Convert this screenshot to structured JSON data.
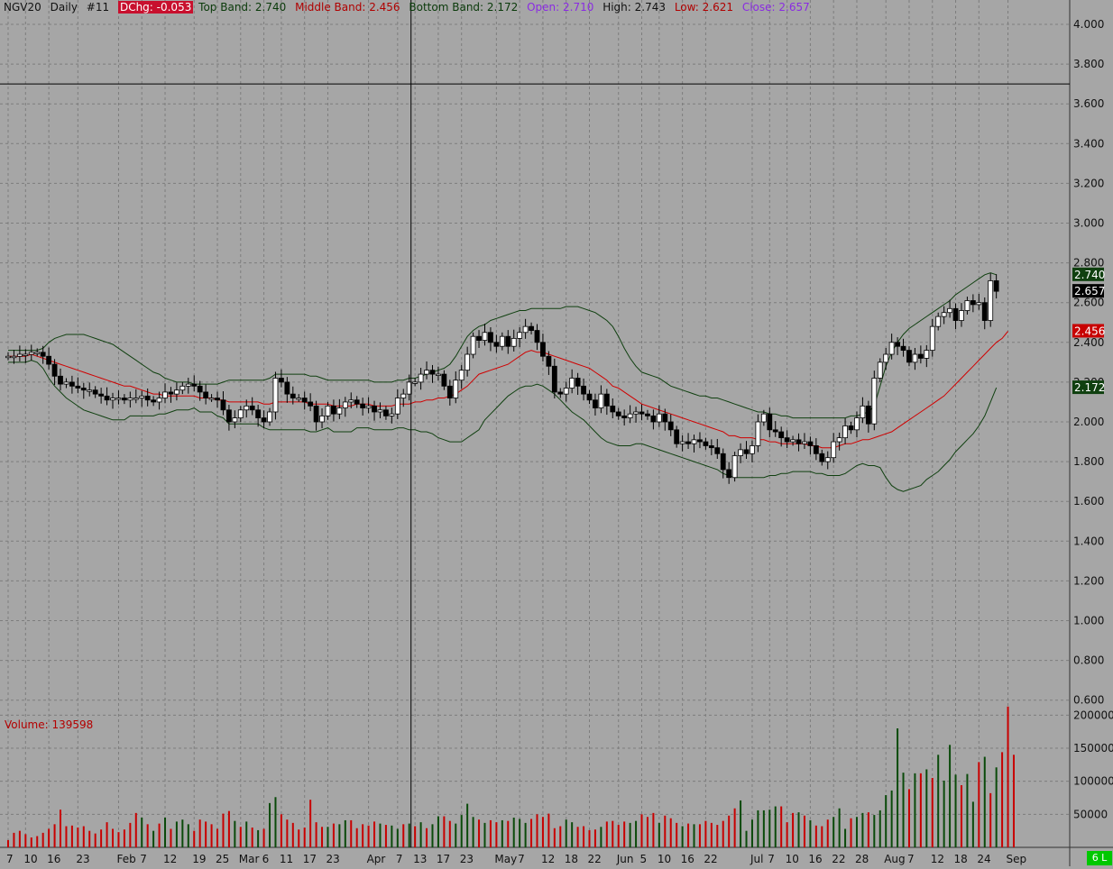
{
  "legend": {
    "symbol": "NGV20",
    "period": "Daily",
    "id": "#11",
    "dchg": "DChg: -0.053",
    "top_band": "Top Band: 2.740",
    "middle_band": "Middle Band: 2.456",
    "bottom_band": "Bottom Band: 2.172",
    "open": "Open: 2.710",
    "high": "High: 2.743",
    "low": "Low: 2.621",
    "close": "Close: 2.657"
  },
  "volume_label": "Volume: 139598",
  "corner_badge": "6 L",
  "colors": {
    "background": "#a6a6a6",
    "grid": "#7d7d7d",
    "band": "#104010",
    "middle": "#d00000",
    "up_candle": "#ffffff",
    "down_candle": "#000000",
    "volume_up": "#0a4a0a",
    "volume_down": "#c80000",
    "dchg_bg": "#c8102e"
  },
  "chart_data": {
    "type": "candlestick",
    "ylim": [
      0.5,
      4.1
    ],
    "volume_ylim": [
      0,
      225000
    ],
    "y_ticks": [
      "4.000",
      "3.800",
      "3.600",
      "3.400",
      "3.200",
      "3.000",
      "2.800",
      "2.600",
      "2.400",
      "2.200",
      "2.000",
      "1.800",
      "1.600",
      "1.400",
      "1.200",
      "1.000",
      "0.800",
      "0.600"
    ],
    "volume_ticks": [
      "200000",
      "150000",
      "100000",
      "50000"
    ],
    "x_ticks": [
      {
        "label": "7",
        "i": 0
      },
      {
        "label": "10",
        "i": 3
      },
      {
        "label": "16",
        "i": 7
      },
      {
        "label": "23",
        "i": 12
      },
      {
        "label": "Feb",
        "i": 19
      },
      {
        "label": "7",
        "i": 23
      },
      {
        "label": "12",
        "i": 27
      },
      {
        "label": "19",
        "i": 32
      },
      {
        "label": "25",
        "i": 36
      },
      {
        "label": "Mar",
        "i": 40
      },
      {
        "label": "6",
        "i": 44
      },
      {
        "label": "11",
        "i": 47
      },
      {
        "label": "17",
        "i": 51
      },
      {
        "label": "23",
        "i": 55
      },
      {
        "label": "Apr",
        "i": 62
      },
      {
        "label": "7",
        "i": 67
      },
      {
        "label": "13",
        "i": 70
      },
      {
        "label": "17",
        "i": 74
      },
      {
        "label": "23",
        "i": 78
      },
      {
        "label": "May",
        "i": 84
      },
      {
        "label": "7",
        "i": 88
      },
      {
        "label": "12",
        "i": 92
      },
      {
        "label": "18",
        "i": 96
      },
      {
        "label": "22",
        "i": 100
      },
      {
        "label": "Jun",
        "i": 105
      },
      {
        "label": "5",
        "i": 109
      },
      {
        "label": "10",
        "i": 112
      },
      {
        "label": "16",
        "i": 116
      },
      {
        "label": "22",
        "i": 120
      },
      {
        "label": "Jul",
        "i": 128
      },
      {
        "label": "7",
        "i": 131
      },
      {
        "label": "10",
        "i": 134
      },
      {
        "label": "16",
        "i": 138
      },
      {
        "label": "22",
        "i": 142
      },
      {
        "label": "28",
        "i": 146
      },
      {
        "label": "Aug",
        "i": 151
      },
      {
        "label": "7",
        "i": 155
      },
      {
        "label": "12",
        "i": 159
      },
      {
        "label": "18",
        "i": 163
      },
      {
        "label": "24",
        "i": 167
      },
      {
        "label": "Sep",
        "i": 172
      }
    ],
    "cursor_index": 69,
    "cursor_price": 3.7,
    "last_labels": [
      {
        "text": "2.740",
        "value": 2.74,
        "bg": "#104010",
        "fg": "#ffffff"
      },
      {
        "text": "2.657",
        "value": 2.657,
        "bg": "#000000",
        "fg": "#ffffff"
      },
      {
        "text": "2.456",
        "value": 2.456,
        "bg": "#c80000",
        "fg": "#ffffff"
      },
      {
        "text": "2.172",
        "value": 2.172,
        "bg": "#104010",
        "fg": "#ffffff"
      }
    ],
    "closes": [
      2.33,
      2.33,
      2.34,
      2.34,
      2.35,
      2.35,
      2.33,
      2.29,
      2.23,
      2.19,
      2.2,
      2.18,
      2.17,
      2.16,
      2.16,
      2.14,
      2.13,
      2.11,
      2.12,
      2.12,
      2.11,
      2.12,
      2.12,
      2.13,
      2.11,
      2.1,
      2.12,
      2.15,
      2.14,
      2.16,
      2.18,
      2.19,
      2.18,
      2.15,
      2.12,
      2.12,
      2.11,
      2.06,
      2.0,
      2.02,
      2.06,
      2.08,
      2.06,
      2.02,
      2.0,
      2.05,
      2.22,
      2.2,
      2.14,
      2.12,
      2.12,
      2.1,
      2.08,
      2.0,
      2.03,
      2.08,
      2.04,
      2.07,
      2.1,
      2.11,
      2.09,
      2.07,
      2.08,
      2.05,
      2.06,
      2.03,
      2.04,
      2.12,
      2.14,
      2.2,
      2.2,
      2.24,
      2.26,
      2.24,
      2.24,
      2.18,
      2.12,
      2.21,
      2.26,
      2.34,
      2.43,
      2.41,
      2.45,
      2.4,
      2.38,
      2.43,
      2.38,
      2.42,
      2.45,
      2.48,
      2.46,
      2.4,
      2.33,
      2.28,
      2.15,
      2.14,
      2.17,
      2.22,
      2.18,
      2.14,
      2.11,
      2.07,
      2.14,
      2.08,
      2.05,
      2.03,
      2.02,
      2.04,
      2.05,
      2.04,
      2.03,
      2.0,
      2.04,
      2.0,
      1.96,
      1.89,
      1.9,
      1.89,
      1.91,
      1.9,
      1.88,
      1.87,
      1.84,
      1.76,
      1.72,
      1.83,
      1.86,
      1.84,
      1.88,
      2.0,
      2.04,
      1.96,
      1.95,
      1.92,
      1.9,
      1.91,
      1.89,
      1.9,
      1.88,
      1.84,
      1.8,
      1.82,
      1.9,
      1.92,
      1.98,
      1.96,
      2.02,
      2.08,
      1.99,
      2.22,
      2.3,
      2.34,
      2.4,
      2.38,
      2.36,
      2.3,
      2.34,
      2.32,
      2.36,
      2.48,
      2.53,
      2.55,
      2.57,
      2.51,
      2.56,
      2.61,
      2.59,
      2.6,
      2.51,
      2.71,
      2.657
    ],
    "mids": [
      2.33,
      2.33,
      2.33,
      2.33,
      2.34,
      2.33,
      2.32,
      2.31,
      2.3,
      2.29,
      2.28,
      2.27,
      2.26,
      2.25,
      2.24,
      2.23,
      2.22,
      2.21,
      2.2,
      2.19,
      2.18,
      2.18,
      2.17,
      2.16,
      2.15,
      2.14,
      2.14,
      2.13,
      2.13,
      2.13,
      2.13,
      2.13,
      2.13,
      2.12,
      2.12,
      2.12,
      2.11,
      2.11,
      2.1,
      2.1,
      2.1,
      2.1,
      2.1,
      2.1,
      2.09,
      2.09,
      2.1,
      2.1,
      2.1,
      2.1,
      2.1,
      2.1,
      2.09,
      2.09,
      2.09,
      2.09,
      2.08,
      2.08,
      2.08,
      2.08,
      2.09,
      2.09,
      2.09,
      2.08,
      2.08,
      2.08,
      2.08,
      2.09,
      2.09,
      2.09,
      2.1,
      2.1,
      2.11,
      2.11,
      2.12,
      2.12,
      2.13,
      2.14,
      2.16,
      2.18,
      2.21,
      2.24,
      2.25,
      2.26,
      2.27,
      2.28,
      2.29,
      2.31,
      2.33,
      2.35,
      2.36,
      2.35,
      2.35,
      2.34,
      2.33,
      2.32,
      2.31,
      2.3,
      2.29,
      2.28,
      2.27,
      2.25,
      2.23,
      2.21,
      2.18,
      2.17,
      2.15,
      2.13,
      2.11,
      2.09,
      2.08,
      2.07,
      2.06,
      2.05,
      2.04,
      2.03,
      2.02,
      2.01,
      2.0,
      1.99,
      1.98,
      1.97,
      1.96,
      1.95,
      1.93,
      1.93,
      1.92,
      1.92,
      1.92,
      1.91,
      1.91,
      1.9,
      1.9,
      1.89,
      1.89,
      1.89,
      1.89,
      1.89,
      1.88,
      1.88,
      1.87,
      1.87,
      1.87,
      1.88,
      1.89,
      1.89,
      1.9,
      1.91,
      1.91,
      1.92,
      1.93,
      1.94,
      1.95,
      1.97,
      1.99,
      2.01,
      2.03,
      2.05,
      2.07,
      2.09,
      2.11,
      2.13,
      2.16,
      2.19,
      2.22,
      2.25,
      2.28,
      2.31,
      2.34,
      2.37,
      2.4,
      2.42,
      2.456
    ],
    "uppers": [
      2.36,
      2.36,
      2.36,
      2.36,
      2.36,
      2.36,
      2.37,
      2.4,
      2.42,
      2.43,
      2.44,
      2.44,
      2.44,
      2.44,
      2.43,
      2.42,
      2.41,
      2.4,
      2.39,
      2.37,
      2.35,
      2.33,
      2.31,
      2.29,
      2.27,
      2.25,
      2.24,
      2.22,
      2.21,
      2.2,
      2.2,
      2.2,
      2.19,
      2.19,
      2.19,
      2.19,
      2.19,
      2.2,
      2.21,
      2.21,
      2.21,
      2.21,
      2.21,
      2.21,
      2.21,
      2.22,
      2.24,
      2.24,
      2.24,
      2.24,
      2.24,
      2.24,
      2.23,
      2.23,
      2.22,
      2.21,
      2.21,
      2.21,
      2.21,
      2.21,
      2.21,
      2.21,
      2.21,
      2.2,
      2.2,
      2.2,
      2.2,
      2.21,
      2.21,
      2.22,
      2.22,
      2.23,
      2.24,
      2.25,
      2.26,
      2.27,
      2.29,
      2.33,
      2.38,
      2.43,
      2.46,
      2.48,
      2.49,
      2.51,
      2.52,
      2.53,
      2.54,
      2.55,
      2.56,
      2.56,
      2.57,
      2.57,
      2.57,
      2.57,
      2.57,
      2.57,
      2.58,
      2.58,
      2.58,
      2.57,
      2.56,
      2.55,
      2.53,
      2.51,
      2.48,
      2.43,
      2.37,
      2.32,
      2.28,
      2.25,
      2.24,
      2.23,
      2.22,
      2.2,
      2.18,
      2.17,
      2.16,
      2.15,
      2.14,
      2.13,
      2.13,
      2.12,
      2.12,
      2.11,
      2.1,
      2.09,
      2.08,
      2.07,
      2.06,
      2.05,
      2.05,
      2.04,
      2.04,
      2.03,
      2.03,
      2.02,
      2.02,
      2.02,
      2.02,
      2.02,
      2.02,
      2.02,
      2.02,
      2.02,
      2.02,
      2.03,
      2.03,
      2.04,
      2.05,
      2.08,
      2.18,
      2.28,
      2.35,
      2.4,
      2.44,
      2.47,
      2.49,
      2.51,
      2.53,
      2.55,
      2.57,
      2.59,
      2.61,
      2.64,
      2.66,
      2.68,
      2.7,
      2.72,
      2.74,
      2.75,
      2.74
    ],
    "lowers": [
      2.3,
      2.3,
      2.3,
      2.3,
      2.31,
      2.3,
      2.27,
      2.22,
      2.18,
      2.15,
      2.12,
      2.1,
      2.08,
      2.06,
      2.05,
      2.04,
      2.03,
      2.02,
      2.01,
      2.01,
      2.01,
      2.03,
      2.03,
      2.03,
      2.03,
      2.03,
      2.04,
      2.04,
      2.05,
      2.06,
      2.06,
      2.06,
      2.07,
      2.05,
      2.05,
      2.05,
      2.03,
      2.02,
      1.99,
      1.99,
      1.99,
      1.99,
      1.99,
      1.99,
      1.97,
      1.96,
      1.96,
      1.96,
      1.96,
      1.96,
      1.96,
      1.96,
      1.95,
      1.95,
      1.96,
      1.97,
      1.95,
      1.95,
      1.95,
      1.95,
      1.97,
      1.97,
      1.97,
      1.96,
      1.96,
      1.96,
      1.96,
      1.97,
      1.97,
      1.96,
      1.96,
      1.95,
      1.95,
      1.94,
      1.92,
      1.91,
      1.9,
      1.9,
      1.9,
      1.92,
      1.94,
      1.96,
      2.01,
      2.04,
      2.07,
      2.1,
      2.13,
      2.15,
      2.17,
      2.18,
      2.18,
      2.19,
      2.18,
      2.16,
      2.14,
      2.11,
      2.08,
      2.05,
      2.03,
      2.01,
      1.98,
      1.95,
      1.92,
      1.9,
      1.89,
      1.88,
      1.88,
      1.88,
      1.89,
      1.89,
      1.88,
      1.87,
      1.86,
      1.85,
      1.84,
      1.83,
      1.82,
      1.81,
      1.8,
      1.79,
      1.78,
      1.77,
      1.76,
      1.74,
      1.73,
      1.72,
      1.72,
      1.72,
      1.72,
      1.72,
      1.72,
      1.73,
      1.73,
      1.74,
      1.74,
      1.75,
      1.75,
      1.75,
      1.75,
      1.74,
      1.74,
      1.73,
      1.73,
      1.73,
      1.74,
      1.76,
      1.78,
      1.79,
      1.78,
      1.78,
      1.77,
      1.72,
      1.68,
      1.66,
      1.65,
      1.66,
      1.67,
      1.68,
      1.71,
      1.73,
      1.75,
      1.78,
      1.81,
      1.85,
      1.88,
      1.91,
      1.94,
      1.98,
      2.03,
      2.1,
      2.172
    ],
    "volumes": [
      11000,
      22000,
      25000,
      20000,
      15000,
      17000,
      22000,
      28000,
      35000,
      57000,
      32000,
      33000,
      30000,
      32000,
      25000,
      21000,
      27000,
      38000,
      28000,
      23000,
      27000,
      37000,
      52000,
      45000,
      35000,
      25000,
      36000,
      45000,
      28000,
      39000,
      42000,
      35000,
      25000,
      42000,
      39000,
      35000,
      28000,
      51000,
      55000,
      40000,
      31000,
      39000,
      30000,
      26000,
      28000,
      67000,
      76000,
      50000,
      42000,
      37000,
      27000,
      30000,
      72000,
      38000,
      31000,
      31000,
      36000,
      35000,
      41000,
      41000,
      29000,
      35000,
      33000,
      39000,
      36000,
      34000,
      33000,
      28000,
      35000,
      36000,
      32000,
      38000,
      29000,
      35000,
      47000,
      47000,
      40000,
      36000,
      49000,
      66000,
      46000,
      42000,
      37000,
      41000,
      38000,
      41000,
      40000,
      45000,
      43000,
      37000,
      43000,
      50000,
      46000,
      51000,
      29000,
      32000,
      42000,
      38000,
      31000,
      32000,
      26000,
      27000,
      31000,
      39000,
      40000,
      34000,
      39000,
      37000,
      40000,
      50000,
      46000,
      52000,
      37000,
      48000,
      44000,
      37000,
      32000,
      36000,
      35000,
      35000,
      40000,
      37000,
      34000,
      40000,
      48000,
      59000,
      71000,
      25000,
      42000,
      56000,
      56000,
      57000,
      62000,
      62000,
      38000,
      52000,
      53000,
      48000,
      41000,
      33000,
      32000,
      42000,
      46000,
      59000,
      28000,
      44000,
      46000,
      52000,
      53000,
      49000,
      56000,
      79000,
      86000,
      180000,
      113000,
      88000,
      112000,
      112000,
      118000,
      105000,
      140000,
      101000,
      155000,
      110000,
      94000,
      111000,
      69000,
      129000,
      137000,
      82000,
      121000,
      144000,
      213000,
      140000
    ],
    "volume_colors": [
      "d",
      "d",
      "d",
      "d",
      "d",
      "d",
      "d",
      "d",
      "d",
      "d",
      "d",
      "d",
      "d",
      "d",
      "d",
      "d",
      "d",
      "d",
      "d",
      "d",
      "d",
      "d",
      "d",
      "u",
      "d",
      "u",
      "d",
      "u",
      "d",
      "u",
      "u",
      "u",
      "d",
      "d",
      "d",
      "d",
      "d",
      "d",
      "d",
      "u",
      "d",
      "u",
      "d",
      "u",
      "d",
      "u",
      "u",
      "d",
      "d",
      "d",
      "d",
      "d",
      "d",
      "d",
      "d",
      "u",
      "d",
      "u",
      "u",
      "d",
      "d",
      "d",
      "d",
      "d",
      "u",
      "d",
      "u",
      "u",
      "d",
      "u",
      "d",
      "u",
      "d",
      "u",
      "u",
      "d",
      "d",
      "u",
      "u",
      "u",
      "u",
      "d",
      "u",
      "d",
      "d",
      "u",
      "d",
      "u",
      "u",
      "u",
      "d",
      "d",
      "d",
      "d",
      "d",
      "d",
      "u",
      "u",
      "d",
      "d",
      "d",
      "d",
      "u",
      "d",
      "d",
      "d",
      "d",
      "u",
      "u",
      "d",
      "d",
      "d",
      "u",
      "d",
      "d",
      "d",
      "u",
      "d",
      "u",
      "d",
      "d",
      "d",
      "d",
      "d",
      "d",
      "d",
      "u",
      "u",
      "u",
      "u",
      "u",
      "u",
      "u",
      "d",
      "d",
      "d",
      "u",
      "d",
      "u",
      "d",
      "d",
      "d",
      "u",
      "u",
      "u",
      "d",
      "u",
      "u",
      "d",
      "u",
      "u",
      "u",
      "u",
      "u",
      "u",
      "d",
      "u",
      "d",
      "u",
      "d",
      "u",
      "u",
      "u",
      "u",
      "d",
      "u",
      "u",
      "d",
      "u",
      "d",
      "u",
      "d"
    ]
  }
}
